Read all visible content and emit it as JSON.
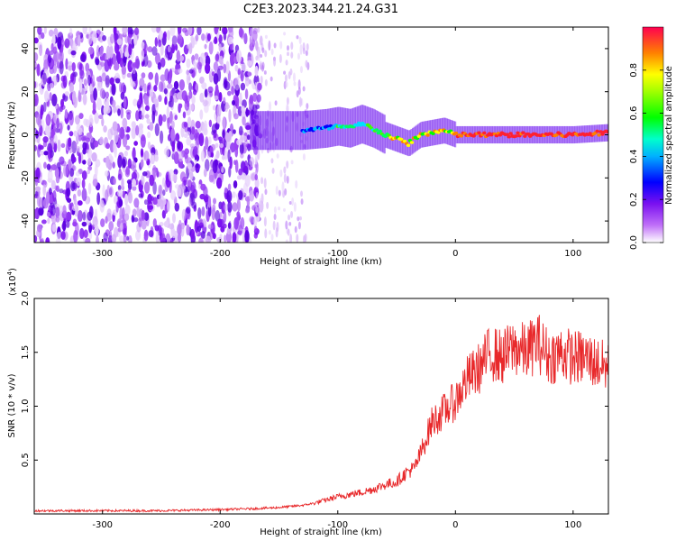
{
  "title": "C2E3.2023.344.21.24.G31",
  "colors": {
    "snr_line": "#e8282a",
    "noise_color": "#7a1cf0",
    "colormap": [
      "#ffffff",
      "#a020f0",
      "#0000ff",
      "#00ffff",
      "#00ff00",
      "#ffff00",
      "#ff8000",
      "#ff0050"
    ]
  },
  "chart_data": [
    {
      "type": "heatmap",
      "xlabel": "Height of straight line (km)",
      "ylabel": "Frequency (Hz)",
      "xlim": [
        -358,
        130
      ],
      "ylim": [
        -50,
        50
      ],
      "xticks": [
        -300,
        -200,
        -100,
        0,
        100
      ],
      "xtick_labels": [
        "-300",
        "-200",
        "-100",
        "0",
        "100"
      ],
      "yticks": [
        -40,
        -20,
        0,
        20,
        40
      ],
      "ytick_labels": [
        "-40",
        "-20",
        "0",
        "20",
        "40"
      ],
      "colorbar": {
        "label": "Normalized spectral amplitude",
        "range": [
          0,
          1
        ],
        "ticks": [
          0.0,
          0.2,
          0.4,
          0.6,
          0.8
        ],
        "tick_labels": [
          "0.0",
          "0.2",
          "0.4",
          "0.6",
          "0.8"
        ]
      },
      "ridge": {
        "x": [
          -130,
          -110,
          -100,
          -90,
          -80,
          -70,
          -60,
          -50,
          -45,
          -40,
          -35,
          -30,
          -20,
          -10,
          0,
          20,
          60,
          100,
          130
        ],
        "y": [
          2,
          3,
          4,
          3,
          5,
          3,
          0,
          -2,
          -3,
          -4,
          -2,
          0,
          1,
          2,
          0,
          0,
          0,
          0,
          1
        ]
      },
      "noise_extent_x": [
        -358,
        -165
      ]
    },
    {
      "type": "line",
      "xlabel": "Height of straight line (km)",
      "ylabel": "SNR (10 * v/v)",
      "ymultiplier_label": "(x10",
      "ymultiplier_exp": "4",
      "xlim": [
        -358,
        130
      ],
      "ylim": [
        0,
        2.0
      ],
      "xticks": [
        -300,
        -200,
        -100,
        0,
        100
      ],
      "xtick_labels": [
        "-300",
        "-200",
        "-100",
        "0",
        "100"
      ],
      "yticks": [
        0.5,
        1.0,
        1.5,
        2.0
      ],
      "ytick_labels": [
        "0.5",
        "1.0",
        "1.5",
        "2.0"
      ],
      "series": [
        {
          "x": [
            -358,
            -300,
            -250,
            -200,
            -170,
            -150,
            -130,
            -120,
            -110,
            -100,
            -90,
            -80,
            -70,
            -60,
            -50,
            -45,
            -40,
            -35,
            -30,
            -25,
            -20,
            -10,
            0,
            10,
            20,
            30,
            40,
            50,
            60,
            70,
            80,
            90,
            100,
            110,
            120,
            130
          ],
          "y": [
            0.03,
            0.03,
            0.03,
            0.04,
            0.05,
            0.06,
            0.08,
            0.1,
            0.13,
            0.16,
            0.18,
            0.2,
            0.23,
            0.27,
            0.3,
            0.35,
            0.4,
            0.42,
            0.55,
            0.7,
            0.85,
            0.95,
            1.05,
            1.25,
            1.35,
            1.5,
            1.45,
            1.55,
            1.5,
            1.6,
            1.45,
            1.5,
            1.45,
            1.45,
            1.4,
            1.35
          ]
        }
      ]
    }
  ]
}
